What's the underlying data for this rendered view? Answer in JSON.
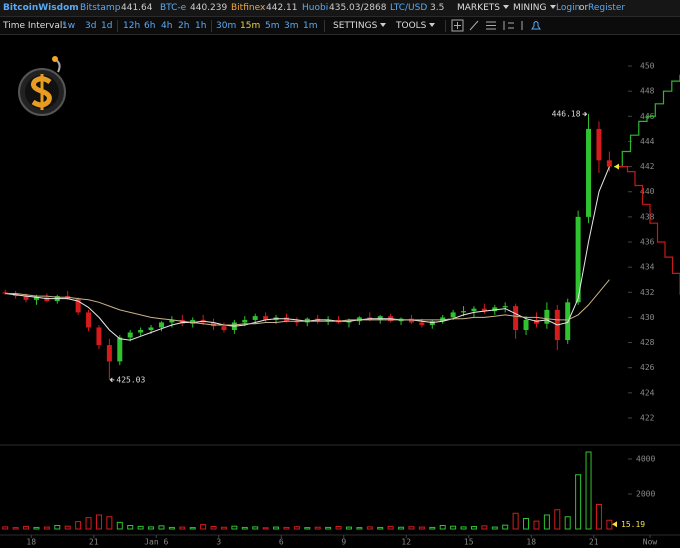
{
  "header": {
    "logo": "BitcoinWisdom",
    "tickers": [
      {
        "name": "Bitstamp",
        "price": 441.64
      },
      {
        "name": "BTC-e",
        "price": 440.239
      },
      {
        "name": "Bitfinex",
        "price": 442.11
      },
      {
        "name": "Huobi",
        "price": "435.03/2868"
      },
      {
        "name": "LTC/USD",
        "price": 3.5
      }
    ],
    "menus": [
      "MARKETS",
      "MINING"
    ],
    "login": "Login",
    "or": "or",
    "register": "Register"
  },
  "toolbar": {
    "label": "Time Interval:",
    "intervals": [
      "1w",
      "3d",
      "1d",
      "12h",
      "6h",
      "4h",
      "2h",
      "1h",
      "30m",
      "15m",
      "5m",
      "3m",
      "1m"
    ],
    "active": "15m",
    "menus": [
      "SETTINGS",
      "TOOLS"
    ]
  },
  "chart_data": {
    "type": "candlestick",
    "up_color": "#2fc42f",
    "down_color": "#d41c1c",
    "x": [
      16.75,
      17.25,
      17.75,
      18.25,
      18.75,
      19.25,
      19.75,
      20.25,
      20.75,
      21.25,
      21.75,
      22.25,
      22.75,
      23.25,
      23.75,
      24.25,
      24.75,
      25.25,
      25.75,
      26.25,
      26.75,
      27.25,
      27.75,
      28.25,
      28.75,
      29.25,
      29.75,
      30.25,
      30.75,
      31.25,
      31.75,
      32.25,
      32.75,
      33.25,
      33.75,
      34.25,
      34.75,
      35.25,
      35.75,
      36.25,
      36.75,
      37.25,
      37.75,
      38.25,
      38.75,
      39.25,
      39.75,
      40.25,
      40.75,
      41.25,
      41.75,
      42.25,
      42.75,
      43.25,
      43.75,
      44.25,
      44.75,
      45.25,
      45.75
    ],
    "open": [
      432.0,
      431.9,
      431.7,
      431.4,
      431.6,
      431.3,
      431.7,
      431.5,
      430.4,
      429.2,
      427.8,
      426.5,
      428.4,
      428.8,
      429.0,
      429.2,
      429.6,
      429.8,
      429.5,
      429.8,
      429.6,
      429.3,
      429.0,
      429.6,
      429.8,
      430.1,
      429.8,
      430.0,
      429.7,
      429.6,
      429.9,
      429.7,
      429.8,
      429.6,
      429.7,
      430.0,
      429.8,
      430.1,
      429.7,
      429.9,
      429.6,
      429.4,
      429.7,
      430.0,
      430.4,
      430.5,
      430.7,
      430.5,
      430.8,
      430.9,
      429.0,
      429.8,
      429.5,
      430.6,
      428.2,
      431.2,
      438.0,
      445.0,
      442.5
    ],
    "high": [
      432.2,
      432.1,
      431.9,
      431.8,
      431.9,
      431.8,
      432.1,
      431.6,
      430.6,
      429.4,
      428.3,
      428.6,
      429.0,
      429.2,
      429.4,
      429.7,
      430.1,
      430.2,
      430.0,
      430.2,
      429.9,
      429.6,
      429.8,
      430.1,
      430.3,
      430.4,
      430.2,
      430.3,
      430.0,
      430.0,
      430.2,
      430.1,
      430.1,
      429.9,
      430.1,
      430.4,
      430.2,
      430.3,
      430.0,
      430.2,
      429.9,
      429.8,
      430.2,
      430.6,
      430.9,
      430.9,
      431.1,
      431.0,
      431.2,
      431.1,
      430.1,
      430.4,
      431.2,
      431.0,
      431.5,
      438.5,
      446.18,
      445.6,
      443.2
    ],
    "low": [
      431.8,
      431.5,
      431.2,
      431.0,
      431.2,
      431.1,
      431.4,
      430.2,
      428.9,
      427.5,
      425.03,
      426.2,
      428.1,
      428.5,
      428.7,
      428.9,
      429.2,
      429.3,
      429.2,
      429.4,
      429.0,
      428.8,
      428.7,
      429.3,
      429.5,
      429.6,
      429.5,
      429.6,
      429.3,
      429.3,
      429.5,
      429.4,
      429.5,
      429.2,
      429.4,
      429.7,
      429.5,
      429.6,
      429.4,
      429.5,
      429.2,
      429.1,
      429.5,
      429.8,
      430.1,
      430.0,
      430.3,
      430.2,
      430.4,
      428.3,
      428.6,
      429.2,
      429.1,
      427.4,
      427.9,
      431.0,
      437.5,
      441.5,
      441.6
    ],
    "close": [
      431.9,
      431.7,
      431.4,
      431.6,
      431.3,
      431.7,
      431.5,
      430.4,
      429.2,
      427.8,
      426.5,
      428.4,
      428.8,
      429.0,
      429.2,
      429.6,
      429.8,
      429.5,
      429.8,
      429.6,
      429.3,
      429.0,
      429.6,
      429.8,
      430.1,
      429.8,
      430.0,
      429.7,
      429.6,
      429.9,
      429.7,
      429.8,
      429.6,
      429.7,
      430.0,
      429.8,
      430.1,
      429.7,
      429.9,
      429.6,
      429.4,
      429.7,
      430.0,
      430.4,
      430.5,
      430.7,
      430.5,
      430.8,
      430.9,
      429.0,
      429.8,
      429.5,
      430.6,
      428.2,
      431.2,
      438.0,
      445.0,
      442.5,
      442.0
    ],
    "series": [
      {
        "color": "#e8e8e8",
        "values": [
          431.9,
          431.8,
          431.7,
          431.6,
          431.5,
          431.5,
          431.5,
          431.3,
          430.8,
          430.0,
          429.0,
          428.3,
          428.2,
          428.5,
          428.8,
          429.1,
          429.4,
          429.6,
          429.6,
          429.7,
          429.6,
          429.4,
          429.3,
          429.4,
          429.6,
          429.8,
          429.9,
          429.9,
          429.8,
          429.7,
          429.8,
          429.8,
          429.7,
          429.7,
          429.8,
          429.9,
          429.9,
          429.9,
          429.8,
          429.8,
          429.7,
          429.6,
          429.7,
          429.9,
          430.2,
          430.4,
          430.5,
          430.6,
          430.7,
          430.3,
          429.9,
          429.7,
          429.8,
          429.4,
          429.6,
          431.5,
          436.0,
          440.0,
          442.0
        ]
      },
      {
        "color": "#c9b38a",
        "values": [
          431.9,
          431.9,
          431.8,
          431.7,
          431.7,
          431.6,
          431.6,
          431.5,
          431.4,
          431.2,
          430.9,
          430.6,
          430.4,
          430.2,
          430.0,
          429.9,
          429.8,
          429.7,
          429.6,
          429.5,
          429.4,
          429.4,
          429.4,
          429.5,
          429.5,
          429.6,
          429.6,
          429.7,
          429.7,
          429.7,
          429.7,
          429.7,
          429.7,
          429.8,
          429.8,
          429.8,
          429.8,
          429.8,
          429.8,
          429.8,
          429.8,
          429.8,
          429.8,
          429.9,
          429.9,
          430.0,
          430.0,
          430.1,
          430.2,
          430.1,
          430.0,
          430.0,
          429.9,
          429.8,
          429.8,
          430.2,
          431.0,
          432.0,
          433.0
        ]
      }
    ],
    "xlim": [
      16.5,
      47.7
    ],
    "xticks": [
      18,
      21,
      {
        "value": 24,
        "label": "Jan 6"
      },
      {
        "value": 27,
        "label": "3"
      },
      {
        "value": 30,
        "label": "6"
      },
      {
        "value": 33,
        "label": "9"
      },
      {
        "value": 36,
        "label": "12"
      },
      {
        "value": 39,
        "label": "15"
      },
      {
        "value": 42,
        "label": "18"
      },
      {
        "value": 45,
        "label": "21"
      },
      {
        "value": 47.7,
        "label": "Now"
      }
    ],
    "ylim": [
      419.85,
      452.55
    ],
    "yticks": [
      422,
      424,
      426,
      428,
      430,
      432,
      434,
      436,
      438,
      440,
      442,
      444,
      446,
      448,
      450
    ],
    "high_label": 446.18,
    "low_label": 425.03,
    "depth": {
      "asks": {
        "color": "#2db92d",
        "values": [
          442,
          443.2,
          444.5,
          445.6,
          446,
          447,
          448,
          448.8,
          449.3
        ]
      },
      "bids": {
        "color": "#c81818",
        "values": [
          442,
          441.6,
          440.5,
          439,
          437.5,
          436,
          434.8,
          433.5,
          431.8
        ]
      }
    },
    "volume": {
      "values": [
        120,
        80,
        150,
        90,
        110,
        200,
        160,
        420,
        650,
        800,
        700,
        380,
        200,
        150,
        120,
        180,
        90,
        110,
        80,
        250,
        140,
        100,
        160,
        90,
        120,
        70,
        110,
        90,
        130,
        80,
        100,
        90,
        140,
        110,
        80,
        120,
        90,
        150,
        100,
        130,
        110,
        90,
        200,
        160,
        120,
        140,
        180,
        110,
        220,
        900,
        600,
        450,
        800,
        1100,
        700,
        3100,
        4400,
        1400,
        500
      ],
      "ylim": [
        0,
        4700
      ],
      "yticks": [
        2000,
        4000
      ],
      "last": 15.19
    }
  }
}
